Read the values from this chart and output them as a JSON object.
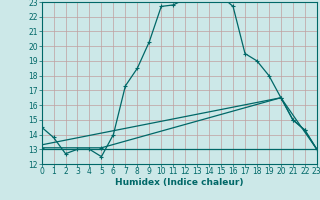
{
  "xlabel": "Humidex (Indice chaleur)",
  "xlim": [
    0,
    23
  ],
  "ylim": [
    12,
    23
  ],
  "yticks": [
    12,
    13,
    14,
    15,
    16,
    17,
    18,
    19,
    20,
    21,
    22,
    23
  ],
  "xticks": [
    0,
    1,
    2,
    3,
    4,
    5,
    6,
    7,
    8,
    9,
    10,
    11,
    12,
    13,
    14,
    15,
    16,
    17,
    18,
    19,
    20,
    21,
    22,
    23
  ],
  "bg_color": "#cce8e8",
  "grid_color": "#c0a0a0",
  "line_color": "#006868",
  "line1_x": [
    0,
    1,
    2,
    3,
    4,
    5,
    6,
    7,
    8,
    9,
    10,
    11,
    12,
    13,
    14,
    15,
    16,
    17,
    18,
    19,
    20,
    21,
    22,
    23
  ],
  "line1_y": [
    14.5,
    13.8,
    12.7,
    13.0,
    13.0,
    12.5,
    14.0,
    17.3,
    18.5,
    20.3,
    22.7,
    22.8,
    23.2,
    23.4,
    23.5,
    23.4,
    22.7,
    19.5,
    19.0,
    18.0,
    16.5,
    15.0,
    14.3,
    13.0
  ],
  "line2_x": [
    0,
    23
  ],
  "line2_y": [
    13.0,
    13.0
  ],
  "line3_x": [
    0,
    5,
    20,
    21,
    22,
    23
  ],
  "line3_y": [
    13.1,
    13.1,
    16.5,
    15.0,
    14.3,
    13.0
  ],
  "line4_x": [
    0,
    20,
    23
  ],
  "line4_y": [
    13.3,
    16.5,
    13.0
  ]
}
